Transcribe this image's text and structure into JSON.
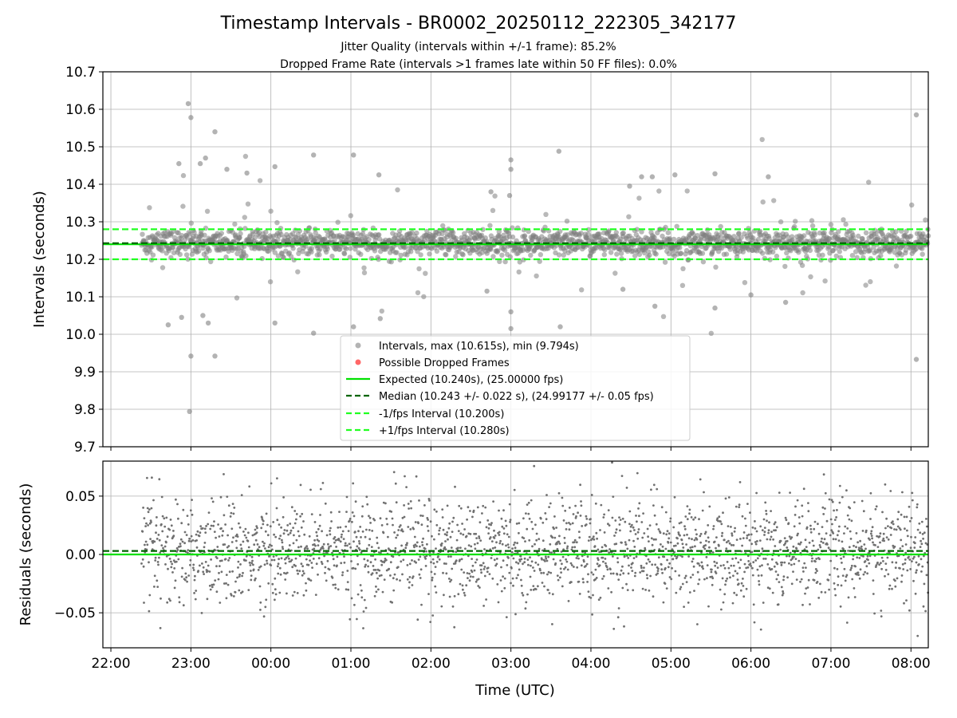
{
  "chart_data": [
    {
      "type": "scatter",
      "title": "Timestamp Intervals - BR0002_20250112_222305_342177",
      "subtitle_lines": [
        "Jitter Quality (intervals within +/-1 frame): 85.2%",
        "Dropped Frame Rate (intervals >1 frames late within 50 FF files): 0.0%"
      ],
      "xlabel": "",
      "ylabel": "Intervals (seconds)",
      "xlim": [
        "21:54",
        "08:13"
      ],
      "ylim": [
        9.7,
        10.7
      ],
      "yticks": [
        "9.7",
        "9.8",
        "9.9",
        "10.0",
        "10.1",
        "10.2",
        "10.3",
        "10.4",
        "10.5",
        "10.6",
        "10.7"
      ],
      "xticks": [
        "22:00",
        "23:00",
        "00:00",
        "01:00",
        "02:00",
        "03:00",
        "04:00",
        "05:00",
        "06:00",
        "07:00",
        "08:00"
      ],
      "grid": true,
      "legend_position": "lower-center",
      "data_range": {
        "start": "22:23",
        "end": "08:13"
      },
      "series": [
        {
          "name": "Intervals, max (10.615s), min (9.794s)",
          "kind": "points",
          "color": "#808080",
          "max": 10.615,
          "min": 9.794,
          "median": 10.243,
          "std": 0.022,
          "outliers": [
            {
              "x": "22:58",
              "y": 10.615
            },
            {
              "x": "23:00",
              "y": 10.578
            },
            {
              "x": "23:18",
              "y": 10.54
            },
            {
              "x": "23:11",
              "y": 10.47
            },
            {
              "x": "23:07",
              "y": 10.455
            },
            {
              "x": "22:51",
              "y": 10.455
            },
            {
              "x": "23:27",
              "y": 10.44
            },
            {
              "x": "23:42",
              "y": 10.43
            },
            {
              "x": "00:03",
              "y": 10.447
            },
            {
              "x": "00:32",
              "y": 10.478
            },
            {
              "x": "01:02",
              "y": 10.478
            },
            {
              "x": "03:00",
              "y": 10.465
            },
            {
              "x": "03:00",
              "y": 10.44
            },
            {
              "x": "02:59",
              "y": 10.37
            },
            {
              "x": "03:36",
              "y": 10.488
            },
            {
              "x": "04:29",
              "y": 10.395
            },
            {
              "x": "04:38",
              "y": 10.42
            },
            {
              "x": "04:46",
              "y": 10.42
            },
            {
              "x": "05:03",
              "y": 10.425
            },
            {
              "x": "05:33",
              "y": 10.428
            },
            {
              "x": "06:13",
              "y": 10.42
            },
            {
              "x": "08:04",
              "y": 10.585
            },
            {
              "x": "01:21",
              "y": 10.425
            },
            {
              "x": "02:45",
              "y": 10.38
            },
            {
              "x": "22:59",
              "y": 9.794
            },
            {
              "x": "23:00",
              "y": 9.942
            },
            {
              "x": "23:18",
              "y": 9.942
            },
            {
              "x": "22:53",
              "y": 10.045
            },
            {
              "x": "23:09",
              "y": 10.05
            },
            {
              "x": "23:13",
              "y": 10.03
            },
            {
              "x": "00:03",
              "y": 10.03
            },
            {
              "x": "00:32",
              "y": 10.003
            },
            {
              "x": "01:02",
              "y": 10.02
            },
            {
              "x": "01:22",
              "y": 10.042
            },
            {
              "x": "03:00",
              "y": 10.06
            },
            {
              "x": "03:00",
              "y": 10.015
            },
            {
              "x": "03:37",
              "y": 10.02
            },
            {
              "x": "08:04",
              "y": 9.933
            },
            {
              "x": "22:43",
              "y": 10.025
            },
            {
              "x": "04:48",
              "y": 10.075
            },
            {
              "x": "05:33",
              "y": 10.07
            },
            {
              "x": "06:26",
              "y": 10.085
            },
            {
              "x": "02:42",
              "y": 10.115
            },
            {
              "x": "04:24",
              "y": 10.12
            },
            {
              "x": "06:00",
              "y": 10.105
            }
          ]
        },
        {
          "name": "Possible Dropped Frames",
          "kind": "points",
          "color": "#ff4040",
          "values": []
        },
        {
          "name": "Expected (10.240s), (25.00000 fps)",
          "kind": "hline",
          "y": 10.24,
          "color": "#00e000",
          "style": "solid"
        },
        {
          "name": "Median (10.243 +/- 0.022 s), (24.99177 +/- 0.05 fps)",
          "kind": "hline",
          "y": 10.243,
          "color": "#006400",
          "style": "dashed"
        },
        {
          "name": "-1/fps Interval (10.200s)",
          "kind": "hline",
          "y": 10.2,
          "color": "#20ff20",
          "style": "dashed"
        },
        {
          "name": "+1/fps Interval (10.280s)",
          "kind": "hline",
          "y": 10.28,
          "color": "#20ff20",
          "style": "dashed"
        }
      ]
    },
    {
      "type": "scatter",
      "title": "",
      "xlabel": "Time (UTC)",
      "ylabel": "Residuals (seconds)",
      "xlim": [
        "21:54",
        "08:13"
      ],
      "ylim": [
        -0.08,
        0.08
      ],
      "yticks": [
        "−0.05",
        "0.00",
        "0.05"
      ],
      "ytick_values": [
        -0.05,
        0.0,
        0.05
      ],
      "xticks": [
        "22:00",
        "23:00",
        "00:00",
        "01:00",
        "02:00",
        "03:00",
        "04:00",
        "05:00",
        "06:00",
        "07:00",
        "08:00"
      ],
      "grid": true,
      "data_range": {
        "start": "22:23",
        "end": "08:13"
      },
      "series": [
        {
          "kind": "points",
          "color": "#707070",
          "mean": 0.003,
          "std": 0.022
        },
        {
          "kind": "hline",
          "y": 0.0,
          "color": "#00e000",
          "style": "solid"
        },
        {
          "kind": "hline",
          "y": 0.003,
          "color": "#006400",
          "style": "dashed"
        }
      ]
    }
  ]
}
